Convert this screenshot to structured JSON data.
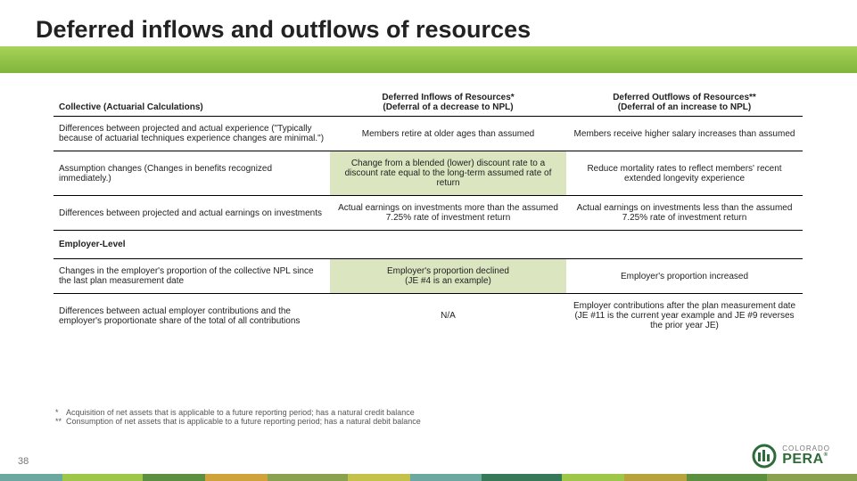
{
  "title": "Deferred inflows and outflows of resources",
  "page_number": "38",
  "table": {
    "header": {
      "col1": "Collective (Actuarial Calculations)",
      "col2_line1": "Deferred Inflows of Resources*",
      "col2_line2": "(Deferral of a decrease to NPL)",
      "col3_line1": "Deferred Outflows of Resources**",
      "col3_line2": "(Deferral of an increase to NPL)"
    },
    "rows": [
      {
        "c1": "Differences between projected and actual experience (\"Typically because of actuarial techniques experience changes are minimal.\")",
        "c2": "Members retire at older ages than assumed",
        "c3": "Members receive higher salary increases than assumed",
        "hl": false
      },
      {
        "c1": "Assumption changes (Changes in benefits recognized immediately.)",
        "c2": "Change from a blended (lower) discount rate to a discount rate equal to the long-term assumed rate of return",
        "c3": "Reduce mortality rates to reflect members' recent extended longevity experience",
        "hl": true
      },
      {
        "c1": "Differences between projected and actual earnings on investments",
        "c2": "Actual earnings on investments more than the assumed 7.25% rate of investment return",
        "c3": "Actual earnings on investments less than the assumed 7.25% rate of investment return",
        "hl": false
      }
    ],
    "section2": "Employer-Level",
    "rows2": [
      {
        "c1": "Changes in the employer's proportion of the collective NPL since the last plan measurement date",
        "c2": "Employer's proportion declined\n(JE #4 is an example)",
        "c3": "Employer's proportion increased",
        "hl": true
      },
      {
        "c1": "Differences between actual employer contributions and the employer's proportionate share of the total of all contributions",
        "c2": "N/A",
        "c3": "Employer contributions after the plan measurement date (JE #11 is the current year example and JE #9 reverses the prior year JE)",
        "hl": false
      }
    ]
  },
  "footnotes": {
    "f1": "Acquisition of net assets that is applicable to a future reporting period; has a natural credit balance",
    "f2": "Consumption of net assets that is applicable to a future reporting period; has a natural debit balance"
  },
  "logo": {
    "line1": "COLORADO",
    "line2": "PERA"
  },
  "bottom_bar_colors": [
    {
      "c": "#6aa8a0",
      "w": 70
    },
    {
      "c": "#9ec648",
      "w": 90
    },
    {
      "c": "#5c8f3e",
      "w": 70
    },
    {
      "c": "#d0a23c",
      "w": 70
    },
    {
      "c": "#8aa24e",
      "w": 90
    },
    {
      "c": "#c4c24a",
      "w": 70
    },
    {
      "c": "#6aa8a0",
      "w": 80
    },
    {
      "c": "#347a5a",
      "w": 90
    },
    {
      "c": "#9ec648",
      "w": 70
    },
    {
      "c": "#b7a23c",
      "w": 70
    },
    {
      "c": "#5c8f3e",
      "w": 90
    },
    {
      "c": "#8aa24e",
      "w": 101
    }
  ]
}
